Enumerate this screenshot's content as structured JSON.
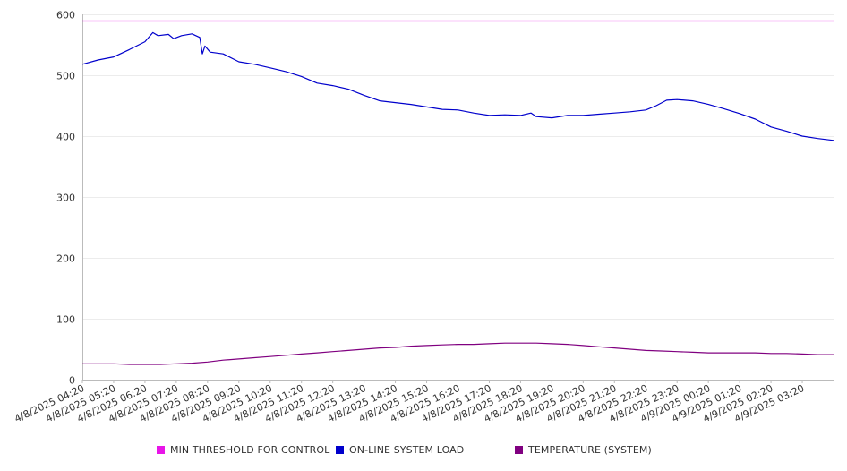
{
  "chart_data": {
    "type": "line",
    "title": "",
    "xlabel": "",
    "ylabel": "",
    "ylim": [
      0,
      600
    ],
    "y_ticks": [
      0,
      100,
      200,
      300,
      400,
      500,
      600
    ],
    "grid": "horizontal",
    "legend_position": "bottom",
    "categories": [
      "4/8/2025 04:20",
      "4/8/2025 05:20",
      "4/8/2025 06:20",
      "4/8/2025 07:20",
      "4/8/2025 08:20",
      "4/8/2025 09:20",
      "4/8/2025 10:20",
      "4/8/2025 11:20",
      "4/8/2025 12:20",
      "4/8/2025 13:20",
      "4/8/2025 14:20",
      "4/8/2025 15:20",
      "4/8/2025 16:20",
      "4/8/2025 17:20",
      "4/8/2025 18:20",
      "4/8/2025 19:20",
      "4/8/2025 20:20",
      "4/8/2025 21:20",
      "4/8/2025 22:20",
      "4/8/2025 23:20",
      "4/9/2025 00:20",
      "4/9/2025 01:20",
      "4/9/2025 02:20",
      "4/9/2025 03:20"
    ],
    "x_start": "4/8/2025 04:20",
    "x_end": "4/9/2025 04:20",
    "series": [
      {
        "name": "MIN THRESHOLD FOR CONTROL",
        "color": "#e815e8",
        "points": [
          [
            "4/8/2025 04:20",
            589
          ],
          [
            "4/9/2025 04:20",
            589
          ]
        ]
      },
      {
        "name": "ON-LINE SYSTEM LOAD",
        "color": "#0000cc",
        "points": [
          [
            "4/8/2025 04:20",
            518
          ],
          [
            "4/8/2025 04:50",
            525
          ],
          [
            "4/8/2025 05:20",
            530
          ],
          [
            "4/8/2025 05:50",
            542
          ],
          [
            "4/8/2025 06:20",
            555
          ],
          [
            "4/8/2025 06:35",
            570
          ],
          [
            "4/8/2025 06:45",
            565
          ],
          [
            "4/8/2025 07:05",
            567
          ],
          [
            "4/8/2025 07:15",
            560
          ],
          [
            "4/8/2025 07:30",
            565
          ],
          [
            "4/8/2025 07:50",
            568
          ],
          [
            "4/8/2025 08:05",
            562
          ],
          [
            "4/8/2025 08:10",
            535
          ],
          [
            "4/8/2025 08:15",
            548
          ],
          [
            "4/8/2025 08:25",
            538
          ],
          [
            "4/8/2025 08:50",
            535
          ],
          [
            "4/8/2025 09:20",
            522
          ],
          [
            "4/8/2025 09:50",
            518
          ],
          [
            "4/8/2025 10:20",
            512
          ],
          [
            "4/8/2025 10:50",
            506
          ],
          [
            "4/8/2025 11:20",
            498
          ],
          [
            "4/8/2025 11:50",
            487
          ],
          [
            "4/8/2025 12:20",
            483
          ],
          [
            "4/8/2025 12:50",
            477
          ],
          [
            "4/8/2025 13:20",
            467
          ],
          [
            "4/8/2025 13:50",
            458
          ],
          [
            "4/8/2025 14:20",
            455
          ],
          [
            "4/8/2025 14:50",
            452
          ],
          [
            "4/8/2025 15:20",
            448
          ],
          [
            "4/8/2025 15:50",
            444
          ],
          [
            "4/8/2025 16:20",
            443
          ],
          [
            "4/8/2025 16:50",
            438
          ],
          [
            "4/8/2025 17:20",
            434
          ],
          [
            "4/8/2025 17:50",
            435
          ],
          [
            "4/8/2025 18:20",
            434
          ],
          [
            "4/8/2025 18:40",
            438
          ],
          [
            "4/8/2025 18:50",
            432
          ],
          [
            "4/8/2025 19:20",
            430
          ],
          [
            "4/8/2025 19:50",
            434
          ],
          [
            "4/8/2025 20:20",
            434
          ],
          [
            "4/8/2025 20:50",
            436
          ],
          [
            "4/8/2025 21:20",
            438
          ],
          [
            "4/8/2025 21:50",
            440
          ],
          [
            "4/8/2025 22:20",
            443
          ],
          [
            "4/8/2025 22:40",
            450
          ],
          [
            "4/8/2025 23:00",
            459
          ],
          [
            "4/8/2025 23:20",
            460
          ],
          [
            "4/8/2025 23:50",
            458
          ],
          [
            "4/9/2025 00:20",
            452
          ],
          [
            "4/9/2025 00:50",
            445
          ],
          [
            "4/9/2025 01:20",
            437
          ],
          [
            "4/9/2025 01:50",
            428
          ],
          [
            "4/9/2025 02:20",
            415
          ],
          [
            "4/9/2025 02:50",
            408
          ],
          [
            "4/9/2025 03:20",
            400
          ],
          [
            "4/9/2025 03:50",
            396
          ],
          [
            "4/9/2025 04:20",
            393
          ]
        ]
      },
      {
        "name": "TEMPERATURE (SYSTEM)",
        "color": "#800080",
        "points": [
          [
            "4/8/2025 04:20",
            26
          ],
          [
            "4/8/2025 05:20",
            26
          ],
          [
            "4/8/2025 05:50",
            25
          ],
          [
            "4/8/2025 06:50",
            25
          ],
          [
            "4/8/2025 07:20",
            26
          ],
          [
            "4/8/2025 07:50",
            27
          ],
          [
            "4/8/2025 08:20",
            29
          ],
          [
            "4/8/2025 08:50",
            32
          ],
          [
            "4/8/2025 09:20",
            34
          ],
          [
            "4/8/2025 09:50",
            36
          ],
          [
            "4/8/2025 10:20",
            38
          ],
          [
            "4/8/2025 10:50",
            40
          ],
          [
            "4/8/2025 11:20",
            42
          ],
          [
            "4/8/2025 11:50",
            44
          ],
          [
            "4/8/2025 12:20",
            46
          ],
          [
            "4/8/2025 12:50",
            48
          ],
          [
            "4/8/2025 13:20",
            50
          ],
          [
            "4/8/2025 13:50",
            52
          ],
          [
            "4/8/2025 14:20",
            53
          ],
          [
            "4/8/2025 14:50",
            55
          ],
          [
            "4/8/2025 15:20",
            56
          ],
          [
            "4/8/2025 15:50",
            57
          ],
          [
            "4/8/2025 16:20",
            58
          ],
          [
            "4/8/2025 16:50",
            58
          ],
          [
            "4/8/2025 17:20",
            59
          ],
          [
            "4/8/2025 17:50",
            60
          ],
          [
            "4/8/2025 18:20",
            60
          ],
          [
            "4/8/2025 18:50",
            60
          ],
          [
            "4/8/2025 19:20",
            59
          ],
          [
            "4/8/2025 19:50",
            58
          ],
          [
            "4/8/2025 20:20",
            56
          ],
          [
            "4/8/2025 20:50",
            54
          ],
          [
            "4/8/2025 21:20",
            52
          ],
          [
            "4/8/2025 21:50",
            50
          ],
          [
            "4/8/2025 22:20",
            48
          ],
          [
            "4/8/2025 22:50",
            47
          ],
          [
            "4/8/2025 23:20",
            46
          ],
          [
            "4/8/2025 23:50",
            45
          ],
          [
            "4/9/2025 00:20",
            44
          ],
          [
            "4/9/2025 00:50",
            44
          ],
          [
            "4/9/2025 01:20",
            44
          ],
          [
            "4/9/2025 01:50",
            44
          ],
          [
            "4/9/2025 02:20",
            43
          ],
          [
            "4/9/2025 02:50",
            43
          ],
          [
            "4/9/2025 03:20",
            42
          ],
          [
            "4/9/2025 03:50",
            41
          ],
          [
            "4/9/2025 04:20",
            41
          ]
        ]
      }
    ]
  }
}
